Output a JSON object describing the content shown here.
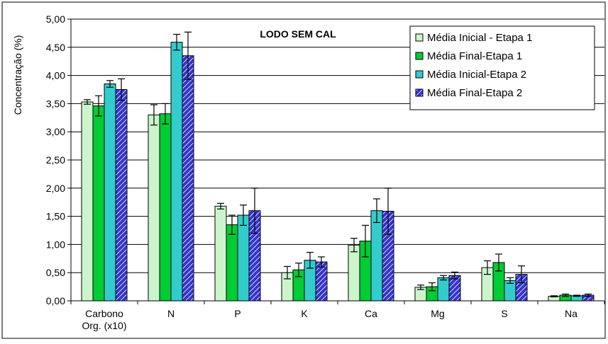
{
  "chart_data": {
    "type": "bar",
    "title": "LODO SEM CAL",
    "xlabel": "",
    "ylabel": "Concentração (%)",
    "ylim": [
      0,
      5
    ],
    "ytick_step": 0.5,
    "ytick_labels": [
      "0,00",
      "0,50",
      "1,00",
      "1,50",
      "2,00",
      "2,50",
      "3,00",
      "3,50",
      "4,00",
      "4,50",
      "5,00"
    ],
    "grid": true,
    "legend_position": "top-right",
    "categories": [
      [
        "Carbono",
        "Org. (x10)"
      ],
      [
        "N"
      ],
      [
        "P"
      ],
      [
        "K"
      ],
      [
        "Ca"
      ],
      [
        "Mg"
      ],
      [
        "S"
      ],
      [
        "Na"
      ]
    ],
    "series": [
      {
        "name": "Média Inicial - Etapa 1",
        "color": "#ccf5cc",
        "pattern": "solid",
        "values": [
          3.53,
          3.3,
          1.68,
          0.5,
          0.99,
          0.24,
          0.59,
          0.08
        ],
        "errors": [
          0.04,
          0.18,
          0.05,
          0.11,
          0.12,
          0.04,
          0.12,
          0.01
        ]
      },
      {
        "name": "Média Final-Etapa 1",
        "color": "#00cc33",
        "pattern": "solid",
        "values": [
          3.46,
          3.32,
          1.35,
          0.55,
          1.06,
          0.25,
          0.68,
          0.1
        ],
        "errors": [
          0.18,
          0.18,
          0.17,
          0.12,
          0.28,
          0.07,
          0.15,
          0.02
        ]
      },
      {
        "name": "Média Inicial-Etapa 2",
        "color": "#33cccc",
        "pattern": "solid",
        "values": [
          3.85,
          4.59,
          1.52,
          0.72,
          1.6,
          0.41,
          0.36,
          0.09
        ],
        "errors": [
          0.06,
          0.14,
          0.18,
          0.14,
          0.21,
          0.04,
          0.05,
          0.01
        ]
      },
      {
        "name": "Média Final-Etapa 2",
        "color": "#3333cc",
        "pattern": "hatch",
        "values": [
          3.75,
          4.35,
          1.6,
          0.69,
          1.59,
          0.45,
          0.47,
          0.1
        ],
        "errors": [
          0.19,
          0.42,
          0.4,
          0.09,
          0.41,
          0.06,
          0.15,
          0.02
        ]
      }
    ]
  }
}
